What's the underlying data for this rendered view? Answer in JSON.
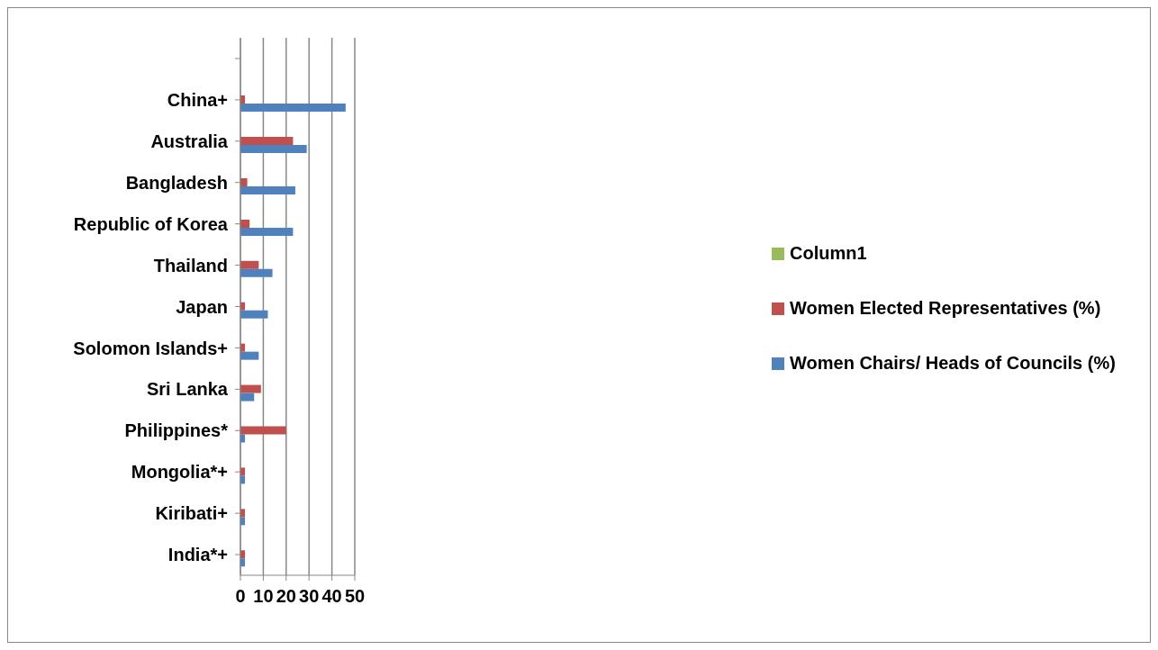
{
  "chart_data": {
    "type": "bar",
    "orientation": "horizontal",
    "categories": [
      null,
      "China+",
      "Australia",
      "Bangladesh",
      "Republic of Korea",
      "Thailand",
      "Japan",
      "Solomon Islands+",
      "Sri Lanka",
      "Philippines*",
      "Mongolia*+",
      "Kiribati+",
      "India*+"
    ],
    "series": [
      {
        "name": "Column1",
        "color": "#9bbb59",
        "values": [
          null,
          null,
          null,
          null,
          null,
          null,
          null,
          null,
          null,
          null,
          null,
          null,
          null
        ]
      },
      {
        "name": "Women Elected Representatives (%)",
        "color": "#c0504d",
        "values": [
          null,
          2,
          23,
          3,
          4,
          8,
          2,
          2,
          9,
          20,
          2,
          2,
          2
        ]
      },
      {
        "name": "Women Chairs/ Heads of Councils (%)",
        "color": "#4f81bd",
        "values": [
          null,
          46,
          29,
          24,
          23,
          14,
          12,
          8,
          6,
          2,
          2,
          2,
          2
        ]
      }
    ],
    "xlim": [
      0,
      50
    ],
    "xticks": [
      0,
      10,
      20,
      30,
      40,
      50
    ],
    "grid": "x",
    "legend": "right"
  }
}
